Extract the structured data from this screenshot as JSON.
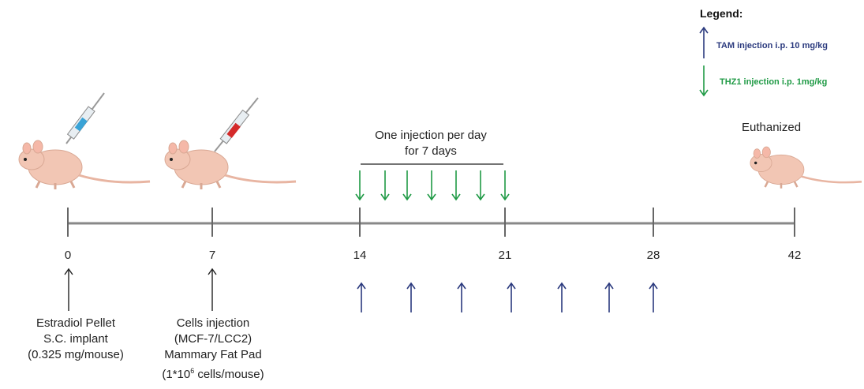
{
  "legend": {
    "title": "Legend:",
    "tam": "TAM injection i.p. 10 mg/kg",
    "thz1": "THZ1 injection i.p. 1mg/kg",
    "tam_color": "#2b3a7e",
    "thz1_color": "#1f9a45"
  },
  "timeline": {
    "days": [
      "0",
      "7",
      "14",
      "21",
      "28",
      "42"
    ]
  },
  "bracket": {
    "line1": "One injection per day",
    "line2": "for 7 days"
  },
  "euthanized": "Euthanized",
  "notes": {
    "day0": [
      "Estradiol Pellet",
      "S.C. implant",
      "(0.325 mg/mouse)"
    ],
    "day7": [
      "Cells injection",
      "(MCF-7/LCC2)",
      "Mammary Fat Pad"
    ],
    "day7_last_pre": "(1*10",
    "day7_last_sup": "6",
    "day7_last_post": " cells/mouse)"
  },
  "colors": {
    "axis": "#888888",
    "mouse": "#f2c6b4",
    "syringe_blue": "#3aa3d6",
    "syringe_red": "#d42a2a"
  }
}
